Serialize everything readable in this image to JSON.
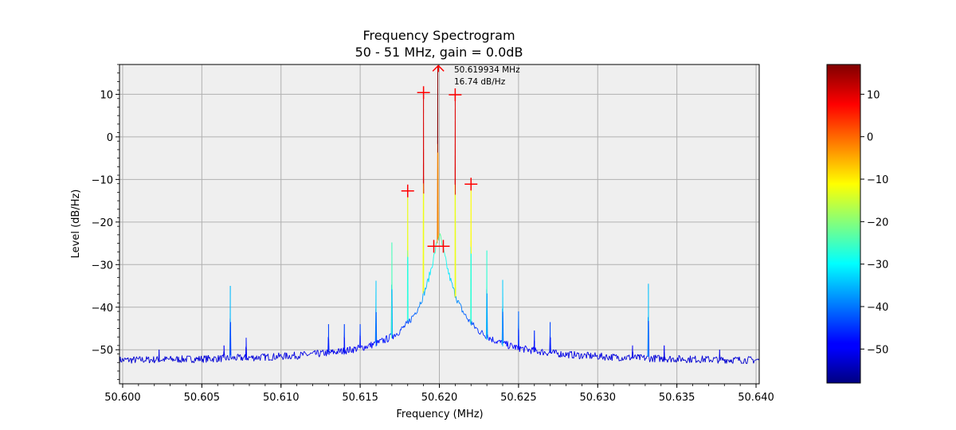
{
  "chart_data": {
    "type": "line",
    "title": "Frequency Spectrogram",
    "subtitle": "50 - 51 MHz, gain = 0.0dB",
    "xlabel": "Frequency (MHz)",
    "ylabel": "Level (dB/Hz)",
    "xlim": [
      50.5998,
      50.6402
    ],
    "ylim": [
      -58,
      17
    ],
    "xticks": [
      "50.600",
      "50.605",
      "50.610",
      "50.615",
      "50.620",
      "50.625",
      "50.630",
      "50.635",
      "50.640"
    ],
    "xtick_values": [
      50.6,
      50.605,
      50.61,
      50.615,
      50.62,
      50.625,
      50.63,
      50.635,
      50.64
    ],
    "yticks": [
      "10",
      "0",
      "−10",
      "−20",
      "−30",
      "−40",
      "−50"
    ],
    "ytick_values": [
      10,
      0,
      -10,
      -20,
      -30,
      -40,
      -50
    ],
    "grid": true,
    "colormap": "jet",
    "colorbar": {
      "range": [
        -58,
        17
      ],
      "ticks": [
        "10",
        "0",
        "−10",
        "−20",
        "−30",
        "−40",
        "−50"
      ],
      "tick_values": [
        10,
        0,
        -10,
        -20,
        -30,
        -40,
        -50
      ]
    },
    "peak_annotation": {
      "freq_label": "50.619934 MHz",
      "level_label": "16.74 dB/Hz",
      "x": 50.619934,
      "y": 16.74
    },
    "peaks": [
      {
        "x": 50.6068,
        "y": -35
      },
      {
        "x": 50.6078,
        "y": -47.2
      },
      {
        "x": 50.6064,
        "y": -49
      },
      {
        "x": 50.6023,
        "y": -50
      },
      {
        "x": 50.613,
        "y": -44
      },
      {
        "x": 50.614,
        "y": -44
      },
      {
        "x": 50.615,
        "y": -44
      },
      {
        "x": 50.616,
        "y": -33.8
      },
      {
        "x": 50.617,
        "y": -24.8
      },
      {
        "x": 50.618,
        "y": -12.7
      },
      {
        "x": 50.619,
        "y": 10.4
      },
      {
        "x": 50.6199,
        "y": 16.74
      },
      {
        "x": 50.621,
        "y": 9.9
      },
      {
        "x": 50.622,
        "y": -11.1
      },
      {
        "x": 50.623,
        "y": -26.7
      },
      {
        "x": 50.624,
        "y": -33.6
      },
      {
        "x": 50.625,
        "y": -41
      },
      {
        "x": 50.626,
        "y": -45.5
      },
      {
        "x": 50.627,
        "y": -43.5
      },
      {
        "x": 50.6322,
        "y": -49
      },
      {
        "x": 50.6332,
        "y": -34.5
      },
      {
        "x": 50.6342,
        "y": -49
      },
      {
        "x": 50.6377,
        "y": -50
      }
    ],
    "markers": [
      {
        "x": 50.618,
        "y": -12.7
      },
      {
        "x": 50.619,
        "y": 10.4
      },
      {
        "x": 50.621,
        "y": 9.9
      },
      {
        "x": 50.622,
        "y": -11.1
      },
      {
        "x": 50.61965,
        "y": -25.7
      },
      {
        "x": 50.62025,
        "y": -25.7
      }
    ]
  }
}
